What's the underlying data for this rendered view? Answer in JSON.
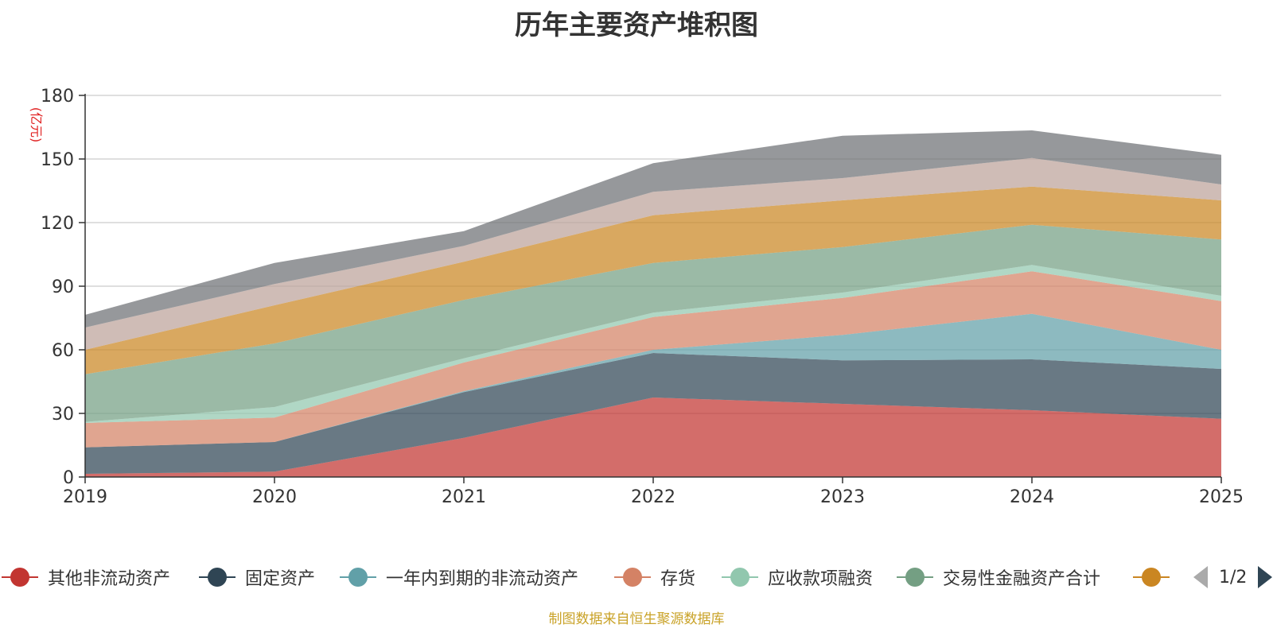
{
  "title": "历年主要资产堆积图",
  "source_note": "制图数据来自恒生聚源数据库",
  "legend_pager": "1/2",
  "chart_data": {
    "type": "area",
    "stacked": true,
    "title": "历年主要资产堆积图",
    "ylabel": "(亿元)",
    "xlabel": "",
    "categories": [
      "2019",
      "2020",
      "2021",
      "2022",
      "2023",
      "2024",
      "2025"
    ],
    "ylim": [
      0,
      180
    ],
    "yticks": [
      0,
      30,
      60,
      90,
      120,
      150,
      180
    ],
    "grid": true,
    "legend_position": "bottom",
    "series": [
      {
        "name": "其他非流动资产",
        "color": "#c23531",
        "values": [
          1.5,
          2.5,
          18.5,
          37.5,
          34.5,
          31.5,
          27.5
        ]
      },
      {
        "name": "固定资产",
        "color": "#2f4554",
        "values": [
          12.5,
          14.0,
          21.5,
          21.0,
          20.5,
          24.0,
          23.5
        ]
      },
      {
        "name": "一年内到期的非流动资产",
        "color": "#61a0a8",
        "values": [
          0.0,
          0.0,
          0.5,
          1.5,
          12.0,
          21.5,
          9.0
        ]
      },
      {
        "name": "存货",
        "color": "#d48265",
        "values": [
          11.5,
          11.5,
          13.5,
          15.5,
          17.5,
          20.0,
          23.0
        ]
      },
      {
        "name": "应收款项融资",
        "color": "#91c7ae",
        "values": [
          0.5,
          5.0,
          2.0,
          2.0,
          2.5,
          3.0,
          2.5
        ]
      },
      {
        "name": "交易性金融资产合计",
        "color": "#749f83",
        "values": [
          22.5,
          30.0,
          27.5,
          23.5,
          21.5,
          19.0,
          26.5
        ]
      },
      {
        "name": "",
        "color": "#ca8622",
        "values": [
          11.5,
          18.0,
          18.0,
          22.5,
          22.0,
          18.0,
          18.5
        ]
      },
      {
        "name": "",
        "color": "#bda29a",
        "values": [
          10.5,
          10.0,
          7.5,
          11.0,
          10.5,
          13.5,
          7.5
        ]
      },
      {
        "name": "",
        "color": "#6e7074",
        "values": [
          6.0,
          10.0,
          7.0,
          13.5,
          20.0,
          13.0,
          14.0
        ]
      }
    ]
  }
}
